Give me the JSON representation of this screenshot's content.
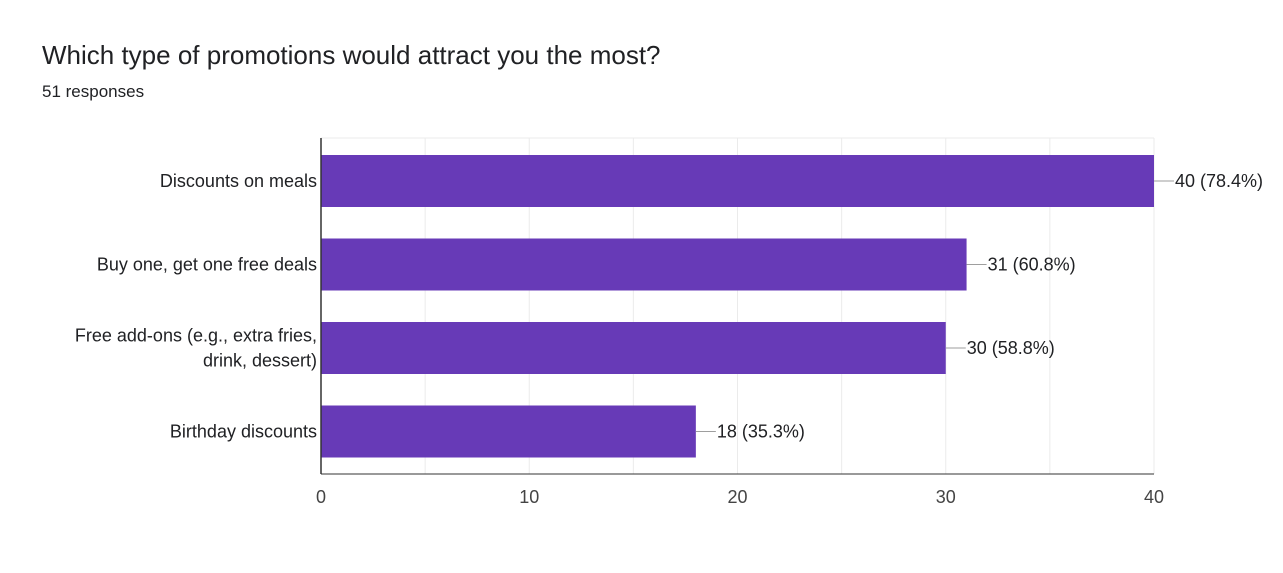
{
  "question": {
    "title": "Which type of promotions would attract you the most?",
    "responses": "51 responses"
  },
  "colors": {
    "bar": "#673AB7",
    "gridline": "#ebebeb",
    "axis": "#333333",
    "text": "#202124"
  },
  "chart_data": {
    "type": "bar",
    "orientation": "horizontal",
    "categories": [
      [
        "Discounts on meals"
      ],
      [
        "Buy one, get one free deals"
      ],
      [
        "Free add-ons (e.g., extra fries,",
        "drink, dessert)"
      ],
      [
        "Birthday discounts"
      ]
    ],
    "values": [
      40,
      31,
      30,
      18
    ],
    "data_labels": [
      "40 (78.4%)",
      "31 (60.8%)",
      "30 (58.8%)",
      "18 (35.3%)"
    ],
    "xlim": [
      0,
      40
    ],
    "xticks": [
      0,
      10,
      20,
      30,
      40
    ],
    "grid": true
  }
}
